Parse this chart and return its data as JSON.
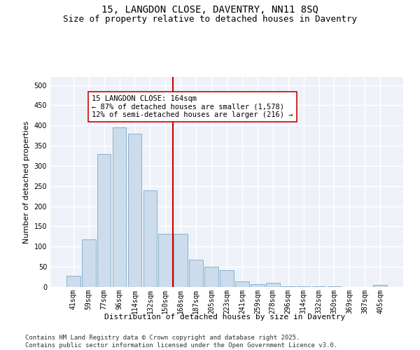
{
  "title": "15, LANGDON CLOSE, DAVENTRY, NN11 8SQ",
  "subtitle": "Size of property relative to detached houses in Daventry",
  "xlabel": "Distribution of detached houses by size in Daventry",
  "ylabel": "Number of detached properties",
  "categories": [
    "41sqm",
    "59sqm",
    "77sqm",
    "96sqm",
    "114sqm",
    "132sqm",
    "150sqm",
    "168sqm",
    "187sqm",
    "205sqm",
    "223sqm",
    "241sqm",
    "259sqm",
    "278sqm",
    "296sqm",
    "314sqm",
    "332sqm",
    "350sqm",
    "369sqm",
    "387sqm",
    "405sqm"
  ],
  "values": [
    27,
    118,
    330,
    395,
    380,
    240,
    132,
    132,
    68,
    50,
    42,
    14,
    7,
    10,
    2,
    1,
    1,
    1,
    0,
    0,
    5
  ],
  "bar_color": "#ccdcec",
  "bar_edge_color": "#7aaac8",
  "vline_x_index": 7,
  "vline_color": "#cc0000",
  "annotation_text": "15 LANGDON CLOSE: 164sqm\n← 87% of detached houses are smaller (1,578)\n12% of semi-detached houses are larger (216) →",
  "annotation_box_color": "#ffffff",
  "annotation_box_edge_color": "#cc0000",
  "ylim": [
    0,
    520
  ],
  "yticks": [
    0,
    50,
    100,
    150,
    200,
    250,
    300,
    350,
    400,
    450,
    500
  ],
  "footer_text": "Contains HM Land Registry data © Crown copyright and database right 2025.\nContains public sector information licensed under the Open Government Licence v3.0.",
  "bg_color": "#ffffff",
  "plot_bg_color": "#eef2f8",
  "grid_color": "#ffffff",
  "title_fontsize": 10,
  "subtitle_fontsize": 9,
  "axis_label_fontsize": 8,
  "tick_fontsize": 7,
  "annotation_fontsize": 7.5,
  "footer_fontsize": 6.5
}
